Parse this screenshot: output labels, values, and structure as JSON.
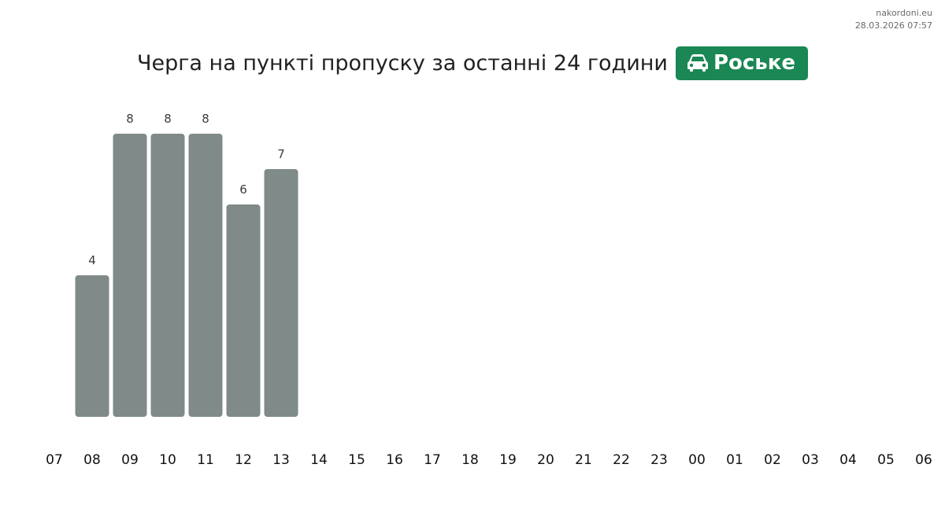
{
  "watermark": {
    "site": "nakordoni.eu",
    "timestamp": "28.03.2026 07:57"
  },
  "header": {
    "title": "Черга на пункті пропуску за останні 24 години",
    "badge_label": "Роське",
    "badge_icon": "car-icon",
    "badge_color": "#1a8754"
  },
  "chart_data": {
    "type": "bar",
    "categories": [
      "07",
      "08",
      "09",
      "10",
      "11",
      "12",
      "13",
      "14",
      "15",
      "16",
      "17",
      "18",
      "19",
      "20",
      "21",
      "22",
      "23",
      "00",
      "01",
      "02",
      "03",
      "04",
      "05",
      "06"
    ],
    "values": [
      null,
      4,
      8,
      8,
      8,
      6,
      7,
      null,
      null,
      null,
      null,
      null,
      null,
      null,
      null,
      null,
      null,
      null,
      null,
      null,
      null,
      null,
      null,
      null
    ],
    "title": "Черга на пункті пропуску за останні 24 години",
    "xlabel": "",
    "ylabel": "",
    "ylim": [
      0,
      8
    ],
    "grid": false,
    "data_labels": true,
    "bar_color": "#7f8a89"
  }
}
